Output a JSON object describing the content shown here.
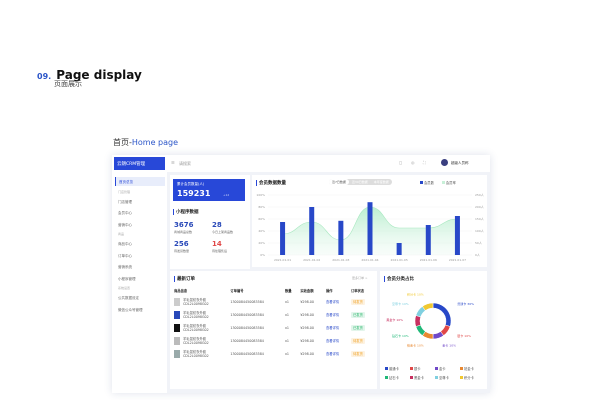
{
  "heading": {
    "number": "09.",
    "title": "Page display",
    "subtitle": "页面展示",
    "section": "首页-",
    "section_en": "Home page"
  },
  "app": {
    "logo": "云朗CRM管理",
    "search_placeholder": "请搜索",
    "user": "超级人员称"
  },
  "sidebar": {
    "items": [
      {
        "label": "首页总览",
        "active": true
      },
      {
        "group": "门店管理"
      },
      {
        "label": "门店管理"
      },
      {
        "label": "会员中心"
      },
      {
        "label": "营销中心"
      },
      {
        "group": "商品"
      },
      {
        "label": "商品中心"
      },
      {
        "label": "订单中心"
      },
      {
        "label": "营销系统"
      },
      {
        "label": "小程序管理"
      },
      {
        "group": "系统设置"
      },
      {
        "label": "公共数据设定"
      },
      {
        "label": "微信公众号管理"
      }
    ]
  },
  "member_card": {
    "label": "累计会员数量(人)",
    "value": "159231",
    "delta": "+12"
  },
  "mini": {
    "title": "小程序数据",
    "stats": [
      {
        "value": "3676",
        "label": "商城商品总数"
      },
      {
        "value": "28",
        "label": "今日上架商品数"
      },
      {
        "value": "256",
        "label": "待发货数量"
      },
      {
        "value": "14",
        "label": "待处理售后"
      }
    ]
  },
  "chart_data": {
    "type": "bar",
    "title": "会员数据数量",
    "tabs": [
      "近7日数据",
      "近30日数据",
      "本年度数据"
    ],
    "categories": [
      "2021.01.01",
      "2021.01.02",
      "2021.01.03",
      "2021.01.04",
      "2021.01.05",
      "2021.01.06",
      "2021.01.07"
    ],
    "series": [
      {
        "name": "会员数",
        "type": "bar",
        "values": [
          55,
          80,
          57,
          88,
          20,
          50,
          65
        ]
      },
      {
        "name": "会员率",
        "type": "area",
        "values": [
          35,
          55,
          25,
          80,
          45,
          45,
          60
        ]
      }
    ],
    "y_left_ticks": [
      "100%",
      "80%",
      "60%",
      "40%",
      "20%",
      "0%"
    ],
    "y_right_ticks": [
      "250人",
      "200人",
      "150人",
      "100人",
      "50人",
      "0人"
    ],
    "ylim": [
      0,
      100
    ]
  },
  "orders": {
    "title": "最新订单",
    "more": "更多订单 >",
    "columns": [
      "商品信息",
      "订单编号",
      "数量",
      "实收金额",
      "操作",
      "订单状态"
    ],
    "rows": [
      {
        "name": "羊毛混纺衣外套",
        "code": "CDL2L0098G02",
        "no": "1300084450083584",
        "qty": "x1",
        "amount": "¥298.00",
        "op": "查看详情",
        "status": "待发货",
        "color": "#f0a020",
        "img": "#ccc"
      },
      {
        "name": "羊毛混纺衣外套",
        "code": "CDL2L0098G02",
        "no": "1300084450083584",
        "qty": "x1",
        "amount": "¥298.00",
        "op": "查看详情",
        "status": "已发货",
        "color": "#22b566",
        "img": "#2848b8"
      },
      {
        "name": "羊毛混纺衣外套",
        "code": "CDL2L0098G02",
        "no": "1300084450083584",
        "qty": "x1",
        "amount": "¥298.00",
        "op": "查看详情",
        "status": "已发货",
        "color": "#22b566",
        "img": "#111"
      },
      {
        "name": "羊毛混纺衣外套",
        "code": "CDL2L0098G02",
        "no": "1300084450083584",
        "qty": "x1",
        "amount": "¥298.00",
        "op": "查看详情",
        "status": "待发货",
        "color": "#f0a020",
        "img": "#bbb"
      },
      {
        "name": "羊毛混纺衣外套",
        "code": "CDL2L0098G02",
        "no": "1300084450083584",
        "qty": "x1",
        "amount": "¥298.00",
        "op": "查看详情",
        "status": "待发货",
        "color": "#f0a020",
        "img": "#9aa"
      }
    ]
  },
  "pie": {
    "title": "会员分类占比",
    "slices": [
      {
        "name": "普通卡",
        "pct": "30%",
        "value": 30,
        "color": "#2848c8"
      },
      {
        "name": "银卡",
        "pct": "10%",
        "value": 10,
        "color": "#e04848"
      },
      {
        "name": "金卡",
        "pct": "10%",
        "value": 10,
        "color": "#7048c8"
      },
      {
        "name": "铂金卡",
        "pct": "10%",
        "value": 10,
        "color": "#e88830"
      },
      {
        "name": "钻石卡",
        "pct": "10%",
        "value": 10,
        "color": "#20b878"
      },
      {
        "name": "黑金卡",
        "pct": "10%",
        "value": 10,
        "color": "#c83060"
      },
      {
        "name": "至尊卡",
        "pct": "10%",
        "value": 10,
        "color": "#80d0e0"
      },
      {
        "name": "积分卡",
        "pct": "10%",
        "value": 10,
        "color": "#f0c830"
      }
    ]
  }
}
